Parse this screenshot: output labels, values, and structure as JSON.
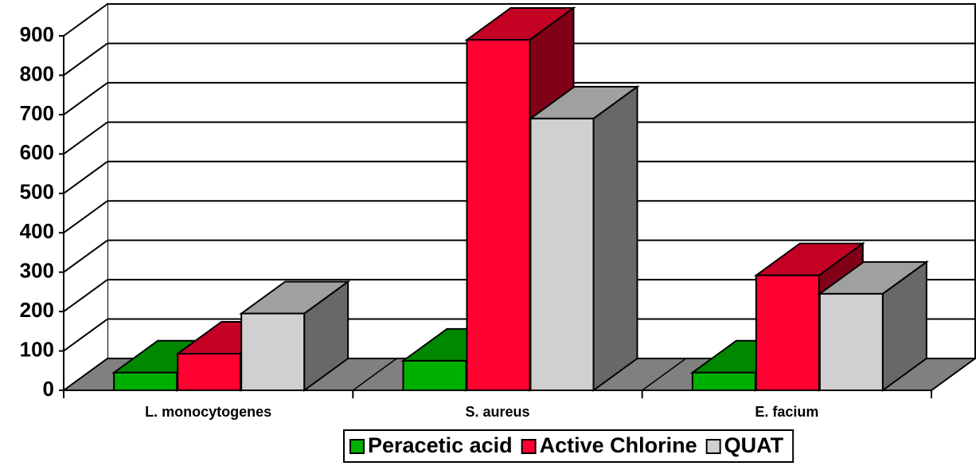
{
  "chart_data": {
    "type": "bar3d",
    "categories": [
      "L. monocytogenes",
      "S. aureus",
      "E. facium"
    ],
    "series": [
      {
        "name": "Peracetic acid",
        "color": "#00b000",
        "values": [
          45,
          75,
          45
        ]
      },
      {
        "name": "Active Chlorine",
        "color": "#ff0030",
        "values": [
          93,
          890,
          292
        ]
      },
      {
        "name": "QUAT",
        "color": "#d0d0d0",
        "values": [
          195,
          690,
          245
        ]
      }
    ],
    "ylim": [
      0,
      900
    ],
    "yticks": [
      0,
      100,
      200,
      300,
      400,
      500,
      600,
      700,
      800,
      900
    ],
    "grid": true,
    "legend": "bottom"
  }
}
